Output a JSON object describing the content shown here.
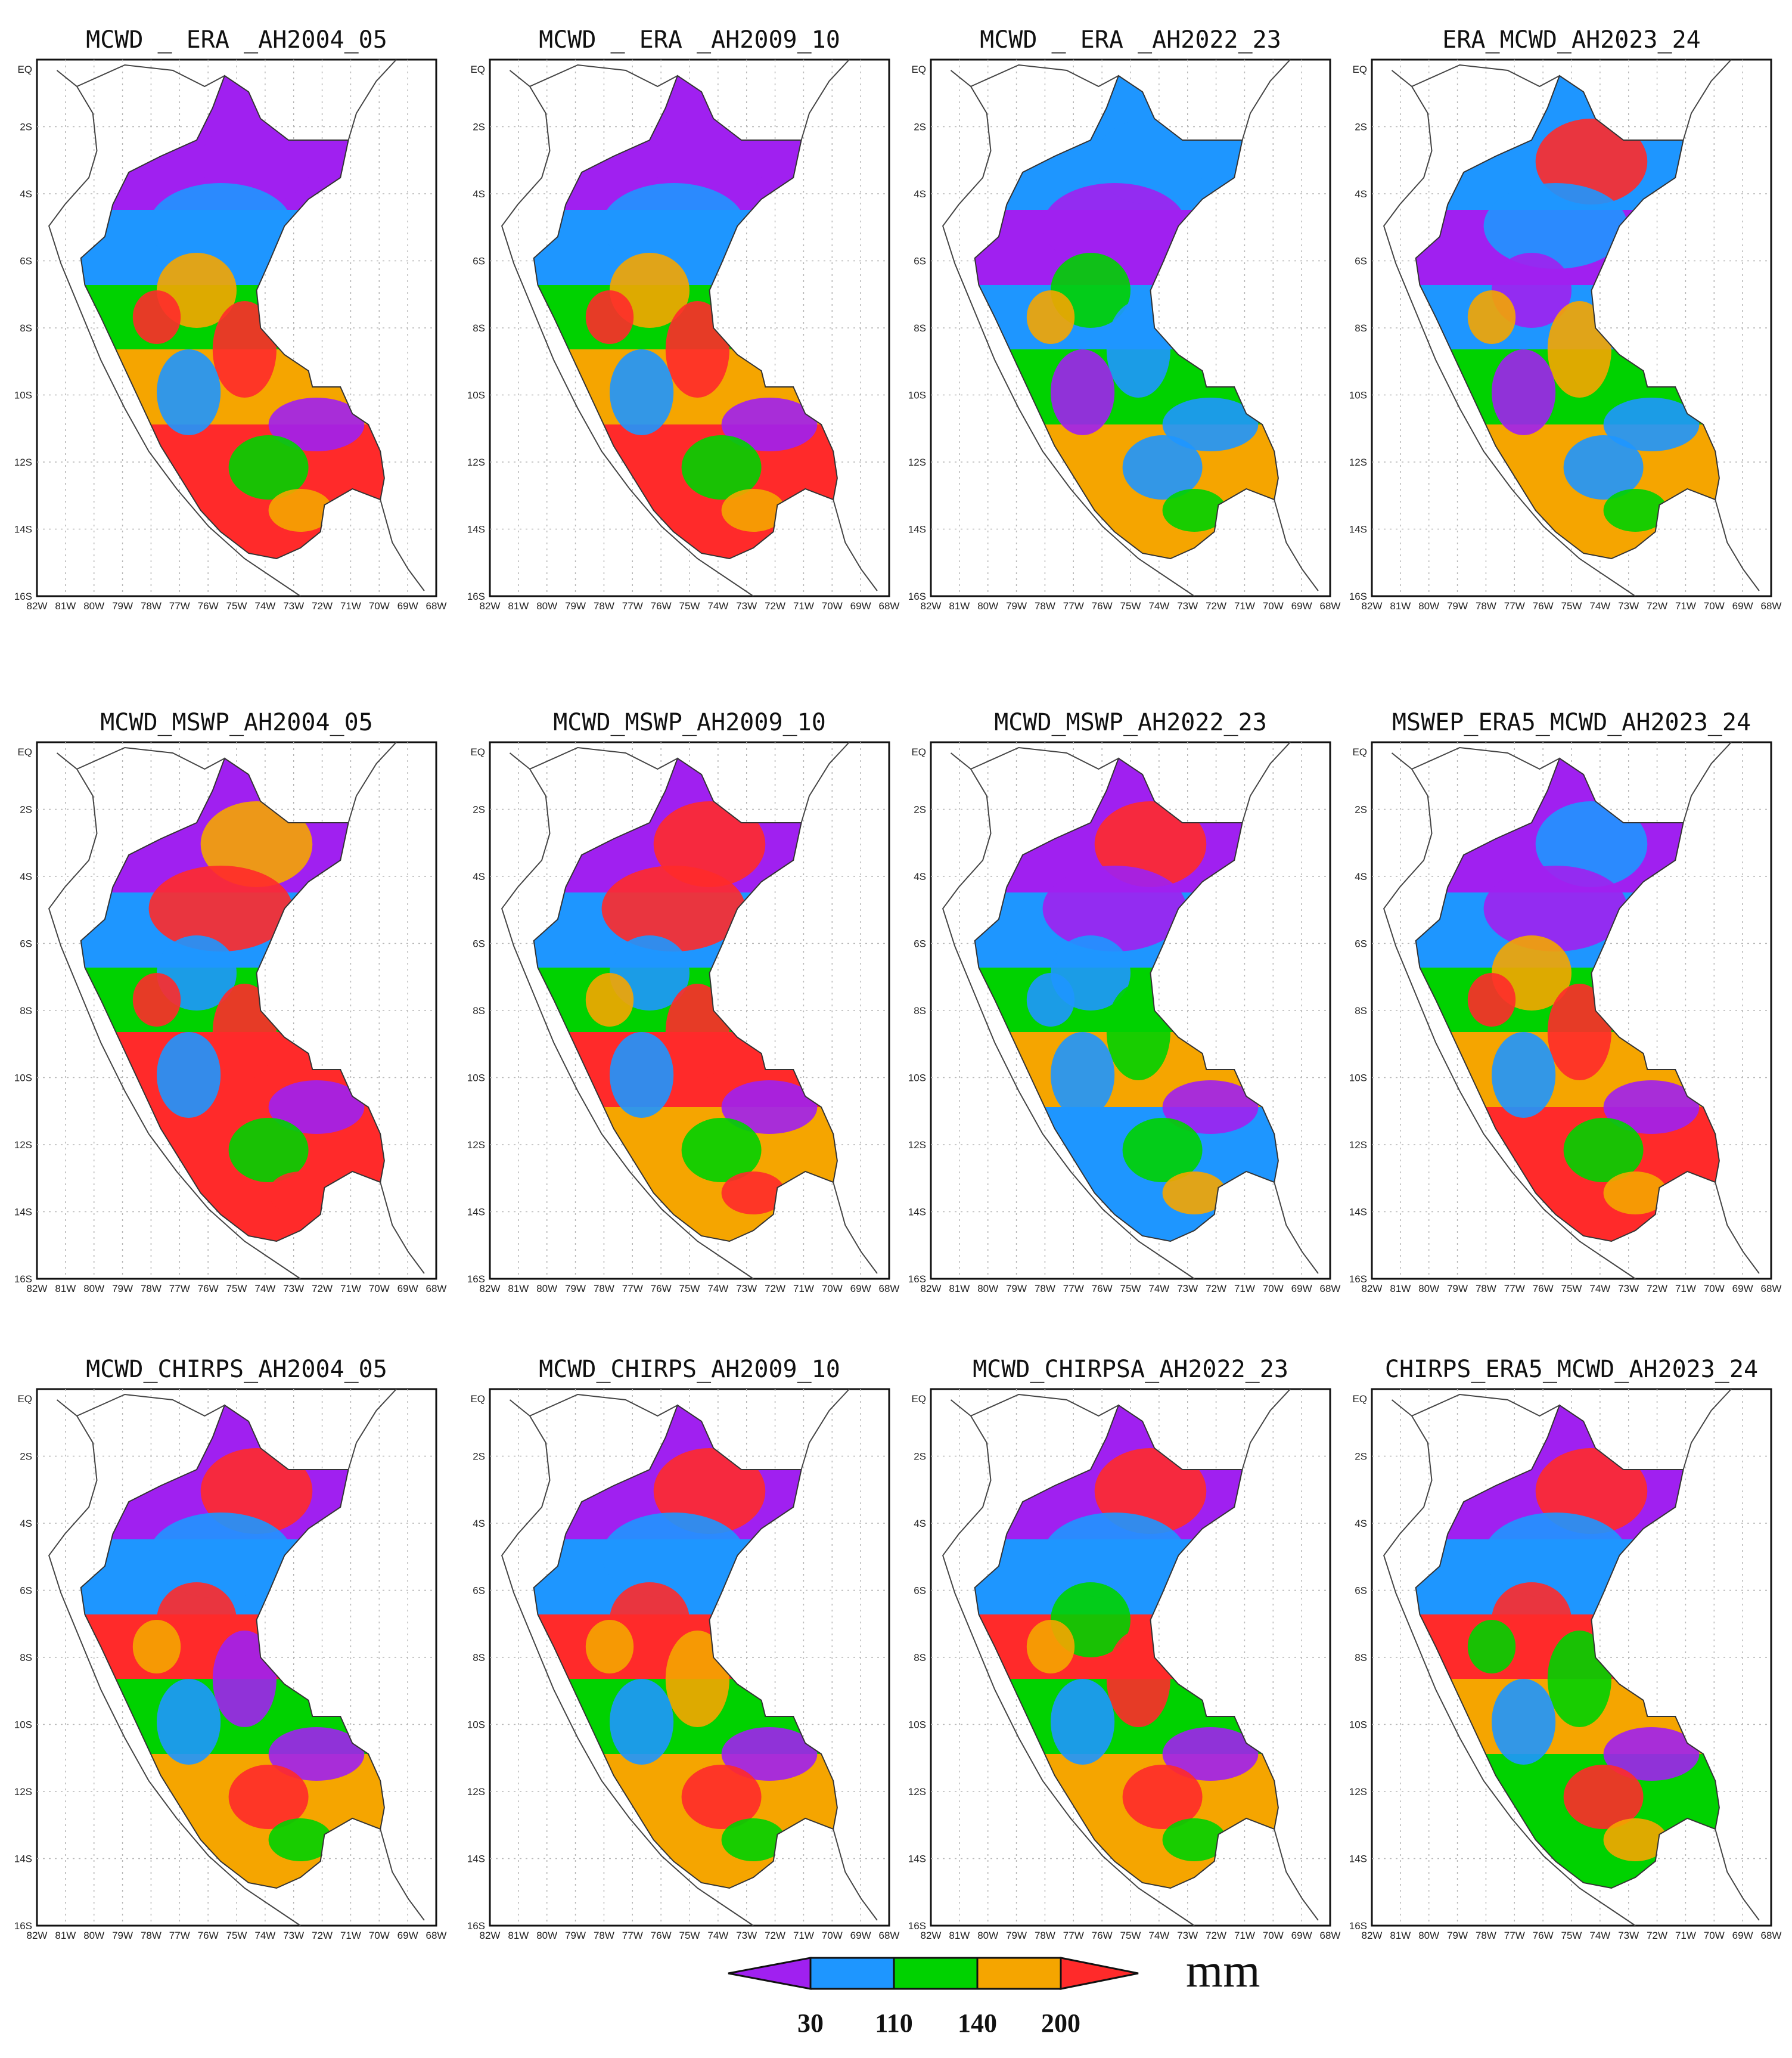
{
  "figure": {
    "panels": [
      {
        "id": "era-2004",
        "title": "MCWD _ ERA _AH2004_05",
        "palette": [
          "#a020f0",
          "#1e96ff",
          "#00d200",
          "#f5a500",
          "#ff2a2a",
          "#a020f0",
          "#1e96ff",
          "#f5a500",
          "#ff2a2a"
        ]
      },
      {
        "id": "era-2009",
        "title": "MCWD _ ERA _AH2009_10",
        "palette": [
          "#a020f0",
          "#1e96ff",
          "#00d200",
          "#f5a500",
          "#ff2a2a",
          "#a020f0",
          "#1e96ff",
          "#f5a500",
          "#ff2a2a"
        ]
      },
      {
        "id": "era-2022",
        "title": "MCWD _ ERA _AH2022_23",
        "palette": [
          "#1e96ff",
          "#a020f0",
          "#1e96ff",
          "#00d200",
          "#f5a500",
          "#1e96ff",
          "#a020f0",
          "#00d200",
          "#1e96ff"
        ]
      },
      {
        "id": "era-2023",
        "title": "ERA_MCWD_AH2023_24",
        "palette": [
          "#1e96ff",
          "#a020f0",
          "#1e96ff",
          "#00d200",
          "#f5a500",
          "#ff2a2a",
          "#1e96ff",
          "#a020f0",
          "#f5a500"
        ]
      },
      {
        "id": "mswp-2004",
        "title": "MCWD_MSWP_AH2004_05",
        "palette": [
          "#a020f0",
          "#1e96ff",
          "#00d200",
          "#ff2a2a",
          "#ff2a2a",
          "#f5a500",
          "#ff2a2a",
          "#1e96ff",
          "#ff2a2a"
        ]
      },
      {
        "id": "mswp-2009",
        "title": "MCWD_MSWP_AH2009_10",
        "palette": [
          "#a020f0",
          "#1e96ff",
          "#00d200",
          "#ff2a2a",
          "#f5a500",
          "#ff2a2a",
          "#ff2a2a",
          "#1e96ff",
          "#ff2a2a"
        ]
      },
      {
        "id": "mswp-2022",
        "title": "MCWD_MSWP_AH2022_23",
        "palette": [
          "#a020f0",
          "#1e96ff",
          "#00d200",
          "#f5a500",
          "#1e96ff",
          "#ff2a2a",
          "#a020f0",
          "#1e96ff",
          "#00d200"
        ]
      },
      {
        "id": "mswep-2023",
        "title": "MSWEP_ERA5_MCWD_AH2023_24",
        "palette": [
          "#a020f0",
          "#1e96ff",
          "#00d200",
          "#f5a500",
          "#ff2a2a",
          "#1e96ff",
          "#a020f0",
          "#f5a500",
          "#ff2a2a"
        ]
      },
      {
        "id": "chirps-2004",
        "title": "MCWD_CHIRPS_AH2004_05",
        "palette": [
          "#a020f0",
          "#1e96ff",
          "#ff2a2a",
          "#00d200",
          "#f5a500",
          "#ff2a2a",
          "#1e96ff",
          "#ff2a2a",
          "#a020f0"
        ]
      },
      {
        "id": "chirps-2009",
        "title": "MCWD_CHIRPS_AH2009_10",
        "palette": [
          "#a020f0",
          "#1e96ff",
          "#ff2a2a",
          "#00d200",
          "#f5a500",
          "#ff2a2a",
          "#1e96ff",
          "#ff2a2a",
          "#f5a500"
        ]
      },
      {
        "id": "chirpsa-2022",
        "title": "MCWD_CHIRPSA_AH2022_23",
        "palette": [
          "#a020f0",
          "#1e96ff",
          "#ff2a2a",
          "#00d200",
          "#f5a500",
          "#ff2a2a",
          "#1e96ff",
          "#00d200",
          "#ff2a2a"
        ]
      },
      {
        "id": "chirps-2023",
        "title": "CHIRPS_ERA5_MCWD_AH2023_24",
        "palette": [
          "#a020f0",
          "#1e96ff",
          "#ff2a2a",
          "#f5a500",
          "#00d200",
          "#ff2a2a",
          "#1e96ff",
          "#ff2a2a",
          "#00d200"
        ]
      }
    ],
    "lat_ticks": [
      "EQ",
      "2S",
      "4S",
      "6S",
      "8S",
      "10S",
      "12S",
      "14S",
      "16S"
    ],
    "lon_ticks": [
      "82W",
      "81W",
      "80W",
      "79W",
      "78W",
      "77W",
      "76W",
      "75W",
      "74W",
      "73W",
      "72W",
      "71W",
      "70W",
      "69W",
      "68W"
    ]
  },
  "colorbar": {
    "colors": {
      "lt30": "#a020f0",
      "b30_110": "#1e96ff",
      "b110_140": "#00d200",
      "b140_200": "#f5a500",
      "gt200": "#ff2a2a"
    },
    "labels": [
      "30",
      "110",
      "140",
      "200"
    ],
    "unit": "mm"
  }
}
